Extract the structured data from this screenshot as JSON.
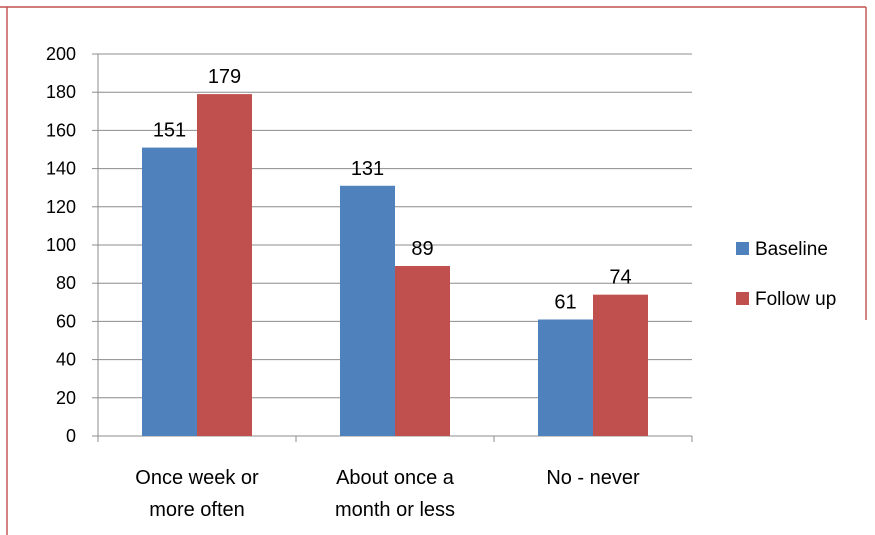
{
  "chart_data": {
    "type": "bar",
    "categories": [
      [
        "Once week or",
        "more often"
      ],
      [
        "About once a",
        "month or less"
      ],
      [
        "No - never"
      ]
    ],
    "series": [
      {
        "name": "Baseline",
        "values": [
          151,
          131,
          61
        ],
        "color": "#4f81bd"
      },
      {
        "name": "Follow up",
        "values": [
          179,
          89,
          74
        ],
        "color": "#c0504d"
      }
    ],
    "title": "",
    "xlabel": "",
    "ylabel": "",
    "ylim": [
      0,
      200
    ],
    "yticks": [
      0,
      20,
      40,
      60,
      80,
      100,
      120,
      140,
      160,
      180,
      200
    ],
    "grid": true,
    "legend": "right",
    "data_labels": true,
    "frame_color": "#c0504d"
  }
}
